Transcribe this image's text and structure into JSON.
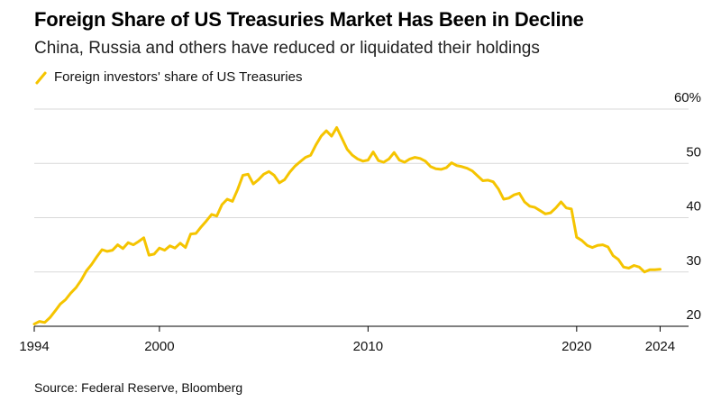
{
  "header": {
    "title": "Foreign Share of US Treasuries Market Has Been in Decline",
    "subtitle": "China, Russia and others have reduced or liquidated their holdings"
  },
  "legend": {
    "label": "Foreign investors' share of US Treasuries"
  },
  "footer": {
    "source": "Source: Federal Reserve, Bloomberg"
  },
  "colors": {
    "series": "#f5c400",
    "grid": "#d9d9d9",
    "axis": "#000000"
  },
  "chart_data": {
    "type": "line",
    "xlim": [
      1994,
      2024.5
    ],
    "ylim": [
      20,
      60
    ],
    "x_ticks": [
      1994,
      2000,
      2010,
      2020,
      2024
    ],
    "y_ticks": [
      20,
      30,
      40,
      50,
      60
    ],
    "y_tick_labels": [
      "20",
      "30",
      "40",
      "50",
      "60%"
    ],
    "grid": "horizontal",
    "series": [
      {
        "name": "Foreign investors' share of US Treasuries",
        "x": [
          1994.0,
          1994.25,
          1994.5,
          1994.75,
          1995.0,
          1995.25,
          1995.5,
          1995.75,
          1996.0,
          1996.25,
          1996.5,
          1996.75,
          1997.0,
          1997.25,
          1997.5,
          1997.75,
          1998.0,
          1998.25,
          1998.5,
          1998.75,
          1999.0,
          1999.25,
          1999.5,
          1999.75,
          2000.0,
          2000.25,
          2000.5,
          2000.75,
          2001.0,
          2001.25,
          2001.5,
          2001.75,
          2002.0,
          2002.25,
          2002.5,
          2002.75,
          2003.0,
          2003.25,
          2003.5,
          2003.75,
          2004.0,
          2004.25,
          2004.5,
          2004.75,
          2005.0,
          2005.25,
          2005.5,
          2005.75,
          2006.0,
          2006.25,
          2006.5,
          2006.75,
          2007.0,
          2007.25,
          2007.5,
          2007.75,
          2008.0,
          2008.25,
          2008.5,
          2008.75,
          2009.0,
          2009.25,
          2009.5,
          2009.75,
          2010.0,
          2010.25,
          2010.5,
          2010.75,
          2011.0,
          2011.25,
          2011.5,
          2011.75,
          2012.0,
          2012.25,
          2012.5,
          2012.75,
          2013.0,
          2013.25,
          2013.5,
          2013.75,
          2014.0,
          2014.25,
          2014.5,
          2014.75,
          2015.0,
          2015.25,
          2015.5,
          2015.75,
          2016.0,
          2016.25,
          2016.5,
          2016.75,
          2017.0,
          2017.25,
          2017.5,
          2017.75,
          2018.0,
          2018.25,
          2018.5,
          2018.75,
          2019.0,
          2019.25,
          2019.5,
          2019.75,
          2020.0,
          2020.25,
          2020.5,
          2020.75,
          2021.0,
          2021.25,
          2021.5,
          2021.75,
          2022.0,
          2022.25,
          2022.5,
          2022.75,
          2023.0,
          2023.25,
          2023.5,
          2023.75,
          2024.0
        ],
        "y": [
          20.4,
          20.9,
          20.7,
          21.6,
          22.8,
          24.1,
          24.9,
          26.1,
          27.1,
          28.5,
          30.2,
          31.4,
          32.8,
          34.1,
          33.8,
          34.0,
          35.0,
          34.3,
          35.4,
          35.0,
          35.6,
          36.3,
          33.1,
          33.3,
          34.4,
          34.0,
          34.8,
          34.4,
          35.3,
          34.5,
          37.0,
          37.1,
          38.3,
          39.4,
          40.6,
          40.3,
          42.4,
          43.4,
          43.0,
          45.2,
          47.8,
          48.0,
          46.2,
          47.0,
          48.0,
          48.5,
          47.8,
          46.4,
          47.0,
          48.4,
          49.5,
          50.3,
          51.1,
          51.5,
          53.4,
          55.0,
          56.0,
          55.0,
          56.6,
          54.6,
          52.6,
          51.5,
          50.8,
          50.4,
          50.6,
          52.1,
          50.5,
          50.2,
          50.8,
          52.0,
          50.6,
          50.2,
          50.8,
          51.1,
          50.9,
          50.4,
          49.4,
          49.0,
          48.9,
          49.2,
          50.1,
          49.6,
          49.4,
          49.1,
          48.6,
          47.7,
          46.8,
          46.9,
          46.6,
          45.3,
          43.4,
          43.6,
          44.2,
          44.5,
          42.9,
          42.1,
          41.9,
          41.3,
          40.7,
          40.9,
          41.8,
          42.9,
          41.8,
          41.6,
          36.4,
          35.8,
          34.9,
          34.5,
          34.9,
          35.0,
          34.6,
          33.0,
          32.3,
          30.9,
          30.7,
          31.2,
          30.9,
          30.0,
          30.4,
          30.4,
          30.5
        ]
      }
    ]
  }
}
